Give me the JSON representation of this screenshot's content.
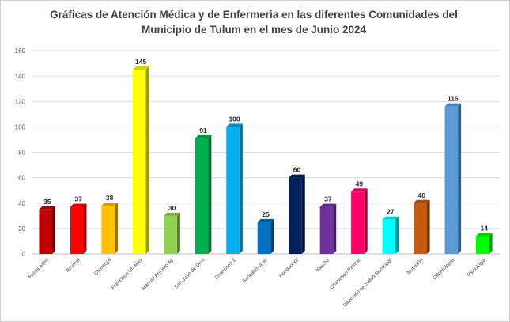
{
  "chart_data": {
    "type": "bar",
    "title": "Gráficas de Atención Médica y de Enfermeria en las diferentes Comunidades del Municipio de Tulum en el mes de Junio 2024",
    "xlabel": "",
    "ylabel": "",
    "ylim": [
      0,
      160
    ],
    "yticks": [
      0,
      20,
      40,
      60,
      80,
      100,
      120,
      140,
      160
    ],
    "grid": true,
    "legend": "none",
    "categories": [
      "Punta Allen",
      "Akumal",
      "Chemuyil",
      "Francisco Uh May",
      "Manuel Antonio Ay",
      "San Juan de Dios",
      "Chanchen 1",
      "Sahcabmucuy",
      "Hondzonot",
      "Yaxché",
      "Chanchen Palmar",
      "Dirección de Salud Municipal",
      "Nutrición",
      "Odontología",
      "Psicologia"
    ],
    "values": [
      35,
      37,
      38,
      145,
      30,
      91,
      100,
      25,
      60,
      37,
      49,
      27,
      40,
      116,
      14
    ],
    "colors": [
      "#c00000",
      "#ff0000",
      "#ffc000",
      "#ffff00",
      "#92d050",
      "#00b050",
      "#00b0f0",
      "#0070c0",
      "#002060",
      "#7030a0",
      "#ff0066",
      "#00ffff",
      "#c55a11",
      "#5b9bd5",
      "#00ff00"
    ]
  }
}
